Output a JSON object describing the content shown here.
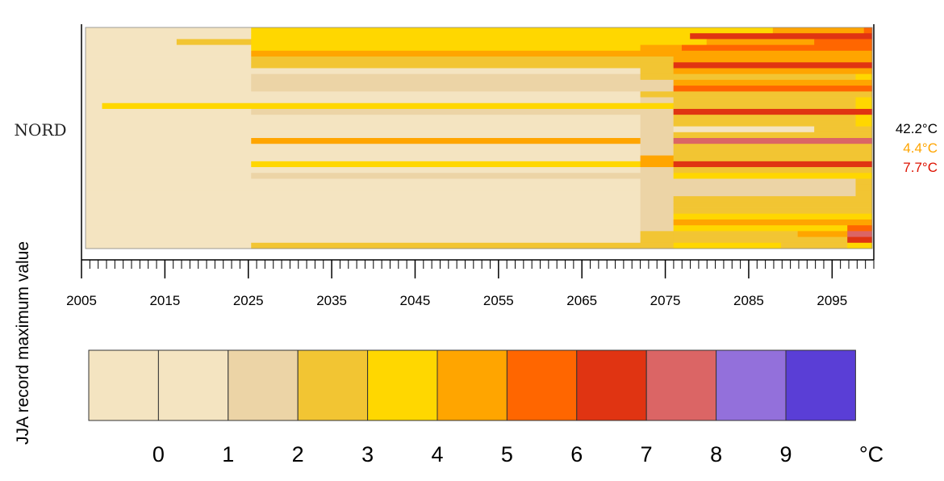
{
  "chart_data": {
    "type": "heatmap",
    "region_label": "NORD",
    "ylabel": "JJA record maximum value",
    "x_range": [
      2005,
      2100
    ],
    "x_tick_labels": [
      "2005",
      "2015",
      "2025",
      "2035",
      "2045",
      "2055",
      "2065",
      "2075",
      "2085",
      "2095"
    ],
    "x_ticks": [
      2005,
      2015,
      2025,
      2035,
      2045,
      2055,
      2065,
      2075,
      2085,
      2095
    ],
    "legend": {
      "labels": [
        "0",
        "1",
        "2",
        "3",
        "4",
        "5",
        "6",
        "7",
        "8",
        "9"
      ],
      "unit": "°C",
      "colors": [
        "#f4e4c1",
        "#f4e4c1",
        "#ecd4a6",
        "#f2c533",
        "#ffd700",
        "#ffa500",
        "#ff6600",
        "#e03412",
        "#db6565",
        "#9370db",
        "#5a3ed6"
      ]
    },
    "readouts": [
      {
        "value": "42.2°C",
        "color": "#000000"
      },
      {
        "value": "4.4°C",
        "color": "#ffa500"
      },
      {
        "value": "7.7°C",
        "color": "#dd1100"
      }
    ],
    "rows": [
      [
        [
          2005,
          2025,
          0
        ],
        [
          2025,
          2077,
          4
        ],
        [
          2077,
          2088,
          4
        ],
        [
          2088,
          2099,
          5
        ],
        [
          2099,
          2100,
          6
        ]
      ],
      [
        [
          2005,
          2025,
          0
        ],
        [
          2025,
          2078,
          4
        ],
        [
          2078,
          2100,
          7
        ]
      ],
      [
        [
          2005,
          2016,
          0
        ],
        [
          2016,
          2025,
          3
        ],
        [
          2025,
          2080,
          4
        ],
        [
          2080,
          2093,
          5
        ],
        [
          2093,
          2100,
          6
        ]
      ],
      [
        [
          2005,
          2025,
          0
        ],
        [
          2025,
          2072,
          4
        ],
        [
          2072,
          2077,
          5
        ],
        [
          2077,
          2100,
          6
        ]
      ],
      [
        [
          2005,
          2025,
          0
        ],
        [
          2025,
          2072,
          5
        ],
        [
          2072,
          2100,
          5
        ]
      ],
      [
        [
          2005,
          2025,
          0
        ],
        [
          2025,
          2072,
          3
        ],
        [
          2072,
          2076,
          3
        ],
        [
          2076,
          2100,
          5
        ]
      ],
      [
        [
          2005,
          2025,
          0
        ],
        [
          2025,
          2072,
          3
        ],
        [
          2072,
          2076,
          3
        ],
        [
          2076,
          2100,
          7
        ]
      ],
      [
        [
          2005,
          2025,
          0
        ],
        [
          2025,
          2072,
          1
        ],
        [
          2072,
          2076,
          3
        ],
        [
          2076,
          2100,
          5
        ]
      ],
      [
        [
          2005,
          2025,
          0
        ],
        [
          2025,
          2072,
          2
        ],
        [
          2072,
          2076,
          3
        ],
        [
          2076,
          2098,
          3
        ],
        [
          2098,
          2100,
          4
        ]
      ],
      [
        [
          2005,
          2025,
          0
        ],
        [
          2025,
          2072,
          2
        ],
        [
          2072,
          2076,
          2
        ],
        [
          2076,
          2100,
          5
        ]
      ],
      [
        [
          2005,
          2025,
          0
        ],
        [
          2025,
          2072,
          2
        ],
        [
          2072,
          2076,
          2
        ],
        [
          2076,
          2100,
          6
        ]
      ],
      [
        [
          2005,
          2025,
          0
        ],
        [
          2025,
          2072,
          1
        ],
        [
          2072,
          2076,
          3
        ],
        [
          2076,
          2100,
          3
        ]
      ],
      [
        [
          2005,
          2025,
          0
        ],
        [
          2025,
          2072,
          1
        ],
        [
          2072,
          2076,
          2
        ],
        [
          2076,
          2098,
          3
        ],
        [
          2098,
          2100,
          4
        ]
      ],
      [
        [
          2005,
          2007,
          0
        ],
        [
          2007,
          2072,
          4
        ],
        [
          2072,
          2076,
          4
        ],
        [
          2076,
          2098,
          3
        ],
        [
          2098,
          2100,
          4
        ]
      ],
      [
        [
          2005,
          2025,
          0
        ],
        [
          2025,
          2072,
          2
        ],
        [
          2072,
          2076,
          2
        ],
        [
          2076,
          2100,
          7
        ]
      ],
      [
        [
          2005,
          2025,
          0
        ],
        [
          2025,
          2072,
          1
        ],
        [
          2072,
          2076,
          2
        ],
        [
          2076,
          2098,
          3
        ],
        [
          2098,
          2100,
          4
        ]
      ],
      [
        [
          2005,
          2025,
          0
        ],
        [
          2025,
          2072,
          1
        ],
        [
          2072,
          2076,
          2
        ],
        [
          2076,
          2098,
          3
        ],
        [
          2098,
          2100,
          4
        ]
      ],
      [
        [
          2005,
          2025,
          0
        ],
        [
          2025,
          2072,
          1
        ],
        [
          2072,
          2076,
          2
        ],
        [
          2076,
          2093,
          1
        ],
        [
          2093,
          2100,
          3
        ]
      ],
      [
        [
          2005,
          2025,
          0
        ],
        [
          2025,
          2072,
          1
        ],
        [
          2072,
          2076,
          2
        ],
        [
          2076,
          2100,
          3
        ]
      ],
      [
        [
          2005,
          2025,
          0
        ],
        [
          2025,
          2072,
          5
        ],
        [
          2072,
          2076,
          2
        ],
        [
          2076,
          2100,
          8
        ]
      ],
      [
        [
          2005,
          2025,
          0
        ],
        [
          2025,
          2072,
          1
        ],
        [
          2072,
          2076,
          2
        ],
        [
          2076,
          2100,
          3
        ]
      ],
      [
        [
          2005,
          2025,
          0
        ],
        [
          2025,
          2072,
          1
        ],
        [
          2072,
          2076,
          2
        ],
        [
          2076,
          2100,
          3
        ]
      ],
      [
        [
          2005,
          2025,
          0
        ],
        [
          2025,
          2072,
          1
        ],
        [
          2072,
          2076,
          5
        ],
        [
          2076,
          2100,
          3
        ]
      ],
      [
        [
          2005,
          2025,
          0
        ],
        [
          2025,
          2072,
          4
        ],
        [
          2072,
          2076,
          5
        ],
        [
          2076,
          2100,
          7
        ]
      ],
      [
        [
          2005,
          2025,
          0
        ],
        [
          2025,
          2072,
          1
        ],
        [
          2072,
          2076,
          2
        ],
        [
          2076,
          2100,
          3
        ]
      ],
      [
        [
          2005,
          2025,
          0
        ],
        [
          2025,
          2072,
          2
        ],
        [
          2072,
          2076,
          2
        ],
        [
          2076,
          2100,
          4
        ]
      ],
      [
        [
          2005,
          2025,
          0
        ],
        [
          2025,
          2072,
          1
        ],
        [
          2072,
          2076,
          2
        ],
        [
          2076,
          2098,
          2
        ],
        [
          2098,
          2100,
          3
        ]
      ],
      [
        [
          2005,
          2025,
          0
        ],
        [
          2025,
          2072,
          1
        ],
        [
          2072,
          2076,
          2
        ],
        [
          2076,
          2098,
          2
        ],
        [
          2098,
          2100,
          3
        ]
      ],
      [
        [
          2005,
          2025,
          0
        ],
        [
          2025,
          2072,
          1
        ],
        [
          2072,
          2076,
          2
        ],
        [
          2076,
          2098,
          2
        ],
        [
          2098,
          2100,
          3
        ]
      ],
      [
        [
          2005,
          2025,
          0
        ],
        [
          2025,
          2072,
          1
        ],
        [
          2072,
          2076,
          2
        ],
        [
          2076,
          2100,
          3
        ]
      ],
      [
        [
          2005,
          2025,
          0
        ],
        [
          2025,
          2072,
          1
        ],
        [
          2072,
          2076,
          2
        ],
        [
          2076,
          2100,
          3
        ]
      ],
      [
        [
          2005,
          2025,
          0
        ],
        [
          2025,
          2072,
          1
        ],
        [
          2072,
          2076,
          2
        ],
        [
          2076,
          2100,
          3
        ]
      ],
      [
        [
          2005,
          2025,
          0
        ],
        [
          2025,
          2072,
          1
        ],
        [
          2072,
          2076,
          2
        ],
        [
          2076,
          2100,
          4
        ]
      ],
      [
        [
          2005,
          2025,
          0
        ],
        [
          2025,
          2072,
          1
        ],
        [
          2072,
          2076,
          2
        ],
        [
          2076,
          2100,
          5
        ]
      ],
      [
        [
          2005,
          2025,
          0
        ],
        [
          2025,
          2072,
          1
        ],
        [
          2072,
          2076,
          2
        ],
        [
          2076,
          2097,
          4
        ],
        [
          2097,
          2100,
          6
        ]
      ],
      [
        [
          2005,
          2025,
          0
        ],
        [
          2025,
          2072,
          1
        ],
        [
          2072,
          2076,
          3
        ],
        [
          2076,
          2091,
          3
        ],
        [
          2091,
          2097,
          5
        ],
        [
          2097,
          2100,
          8
        ]
      ],
      [
        [
          2005,
          2025,
          0
        ],
        [
          2025,
          2072,
          1
        ],
        [
          2072,
          2076,
          3
        ],
        [
          2076,
          2091,
          3
        ],
        [
          2091,
          2097,
          3
        ],
        [
          2097,
          2100,
          7
        ]
      ],
      [
        [
          2005,
          2025,
          0
        ],
        [
          2025,
          2072,
          3
        ],
        [
          2072,
          2076,
          3
        ],
        [
          2076,
          2089,
          4
        ],
        [
          2089,
          2097,
          3
        ],
        [
          2097,
          2100,
          4
        ]
      ]
    ]
  }
}
